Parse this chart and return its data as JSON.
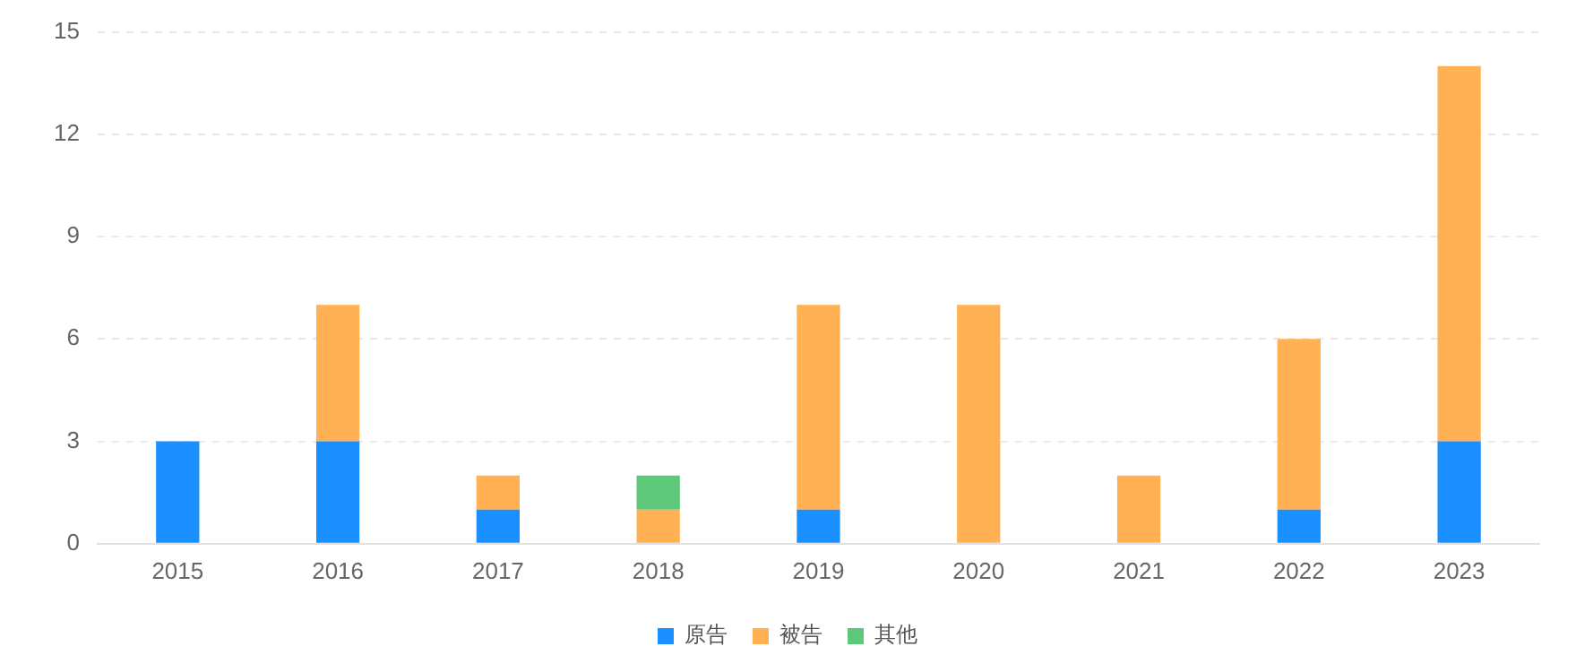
{
  "chart_data": {
    "type": "bar",
    "stacked": true,
    "categories": [
      "2015",
      "2016",
      "2017",
      "2018",
      "2019",
      "2020",
      "2021",
      "2022",
      "2023"
    ],
    "series": [
      {
        "name": "原告",
        "color": "#1a8fff",
        "values": [
          3,
          3,
          1,
          0,
          1,
          0,
          0,
          1,
          3
        ]
      },
      {
        "name": "被告",
        "color": "#ffb153",
        "values": [
          0,
          4,
          1,
          1,
          6,
          7,
          2,
          5,
          11
        ]
      },
      {
        "name": "其他",
        "color": "#5ec87a",
        "values": [
          0,
          0,
          0,
          1,
          0,
          0,
          0,
          0,
          0
        ]
      }
    ],
    "ylim": [
      0,
      15
    ],
    "yticks": [
      0,
      3,
      6,
      9,
      12,
      15
    ],
    "grid": "y",
    "legend": "bottom"
  }
}
